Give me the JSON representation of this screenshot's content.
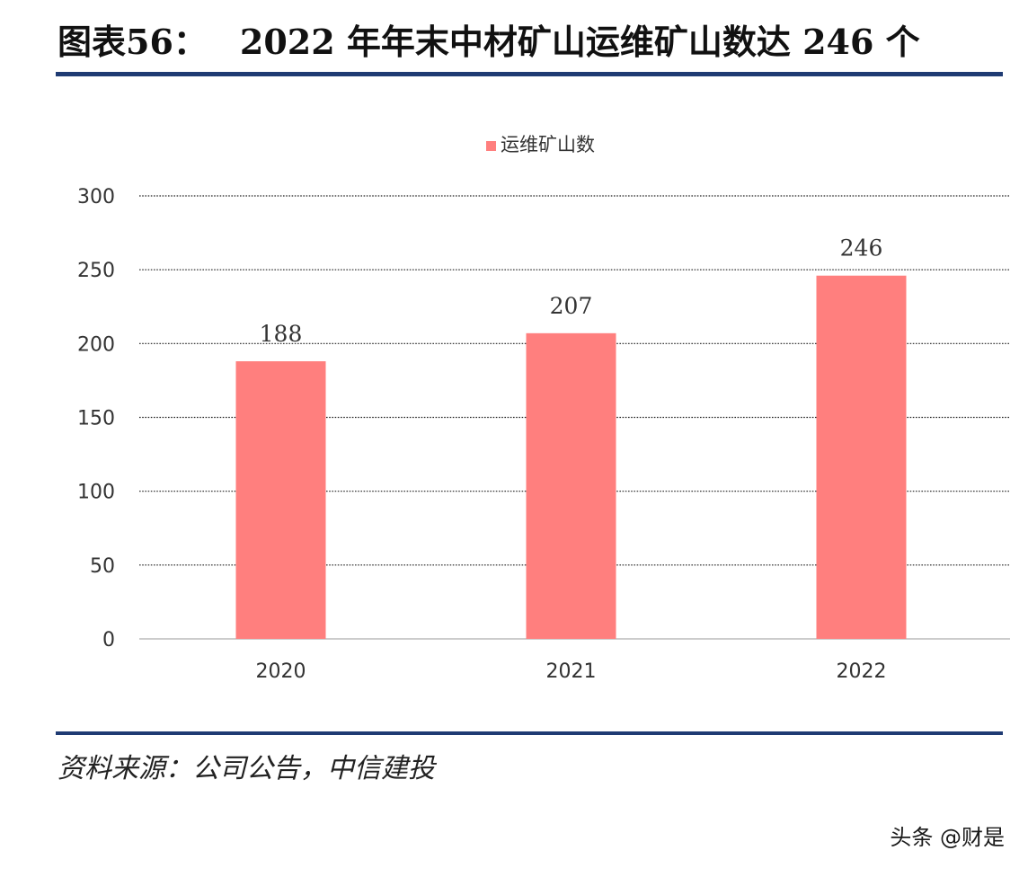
{
  "header": {
    "figure_label": "图表56：",
    "title_text": "2022 年年末中材矿山运维矿山数达 246 个"
  },
  "source": {
    "text": "资料来源：公司公告，中信建投"
  },
  "watermark": {
    "text": "头条 @财是"
  },
  "colors": {
    "bar": "#ff7f7e",
    "rule": "#1f3b73",
    "gridline": "#222222",
    "axis_text": "#333333",
    "data_label": "#333333"
  },
  "chart_data": {
    "type": "bar",
    "categories": [
      "2020",
      "2021",
      "2022"
    ],
    "series": [
      {
        "name": "运维矿山数",
        "values": [
          188,
          207,
          246
        ]
      }
    ],
    "data_labels": [
      "188",
      "207",
      "246"
    ],
    "yticks": [
      "0",
      "50",
      "100",
      "150",
      "200",
      "250",
      "300"
    ],
    "ylim": [
      0,
      300
    ],
    "ystep": 50,
    "grid": true,
    "gridline_style": "dotted",
    "legend_position": "top"
  }
}
